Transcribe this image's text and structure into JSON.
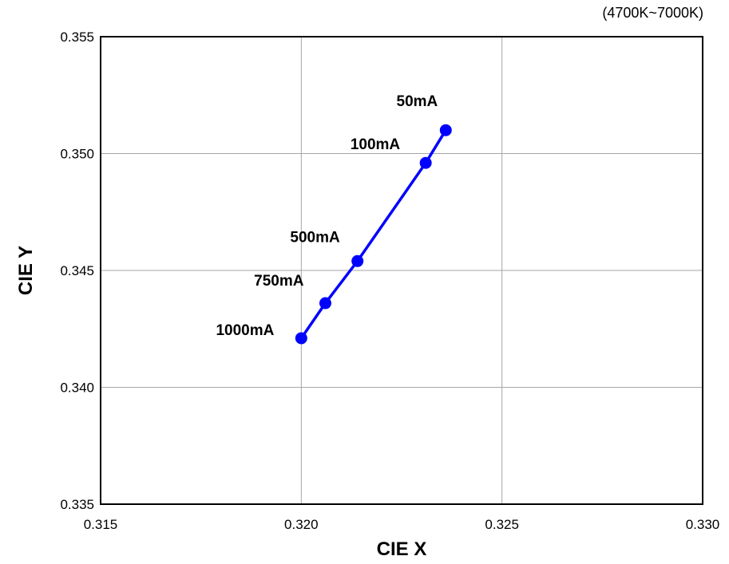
{
  "chart_data": {
    "type": "line",
    "title": "",
    "subtitle": "(4700K~7000K)",
    "xlabel": "CIE X",
    "ylabel": "CIE Y",
    "xlim": [
      0.315,
      0.33
    ],
    "ylim": [
      0.335,
      0.355
    ],
    "xticks": [
      "0.315",
      "0.320",
      "0.325",
      "0.330"
    ],
    "yticks": [
      "0.335",
      "0.340",
      "0.345",
      "0.350",
      "0.355"
    ],
    "grid": true,
    "series": [
      {
        "color": "#0000ff",
        "points": [
          {
            "x": 0.3236,
            "y": 0.351,
            "label": "50mA"
          },
          {
            "x": 0.3231,
            "y": 0.3496,
            "label": "100mA"
          },
          {
            "x": 0.3214,
            "y": 0.3454,
            "label": "500mA"
          },
          {
            "x": 0.3206,
            "y": 0.3436,
            "label": "750mA"
          },
          {
            "x": 0.32,
            "y": 0.3421,
            "label": "1000mA"
          }
        ]
      }
    ]
  }
}
